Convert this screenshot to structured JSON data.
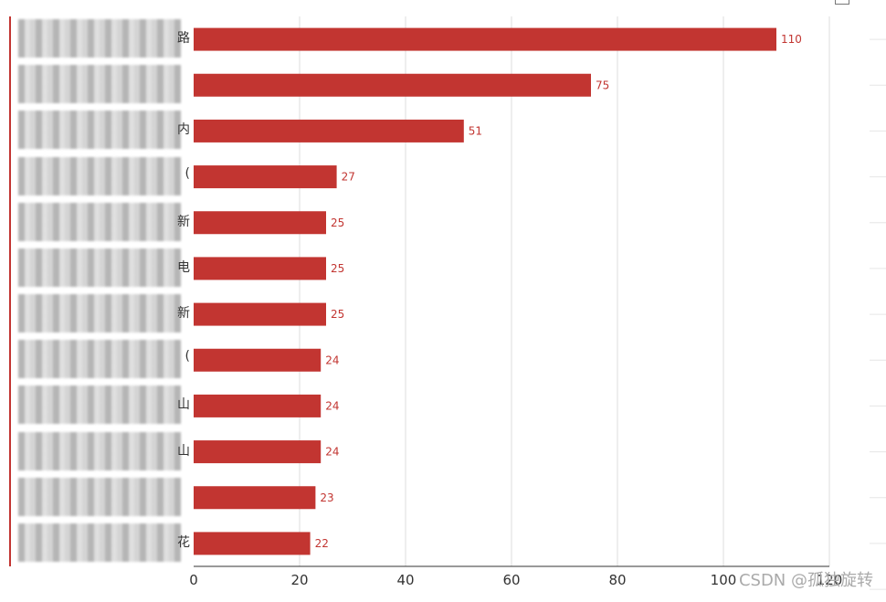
{
  "chart_data": {
    "type": "bar",
    "orientation": "horizontal",
    "title": "",
    "categories": [
      "",
      "",
      "",
      "",
      "",
      "",
      "",
      "",
      "",
      "",
      "",
      ""
    ],
    "category_tail_glyphs": [
      "路",
      "",
      "内",
      "(",
      "新",
      "电",
      "新",
      "(",
      "山",
      "山",
      "",
      "花"
    ],
    "values": [
      110,
      75,
      51,
      27,
      25,
      25,
      25,
      24,
      24,
      24,
      23,
      22
    ],
    "data_labels": [
      "110",
      "75",
      "51",
      "27",
      "25",
      "25",
      "25",
      "24",
      "24",
      "24",
      "23",
      "22"
    ],
    "x_ticks": [
      "0",
      "20",
      "40",
      "60",
      "80",
      "100",
      "120"
    ],
    "xlim": [
      0,
      120
    ],
    "grid": true,
    "bar_color": "#c23531",
    "label_color": "#c23531",
    "axis_color": "#333333",
    "grid_color": "#dddddd",
    "left_axis_color": "#c23531",
    "category_labels_obscured": true
  },
  "watermark": "CSDN @孤独旋转"
}
